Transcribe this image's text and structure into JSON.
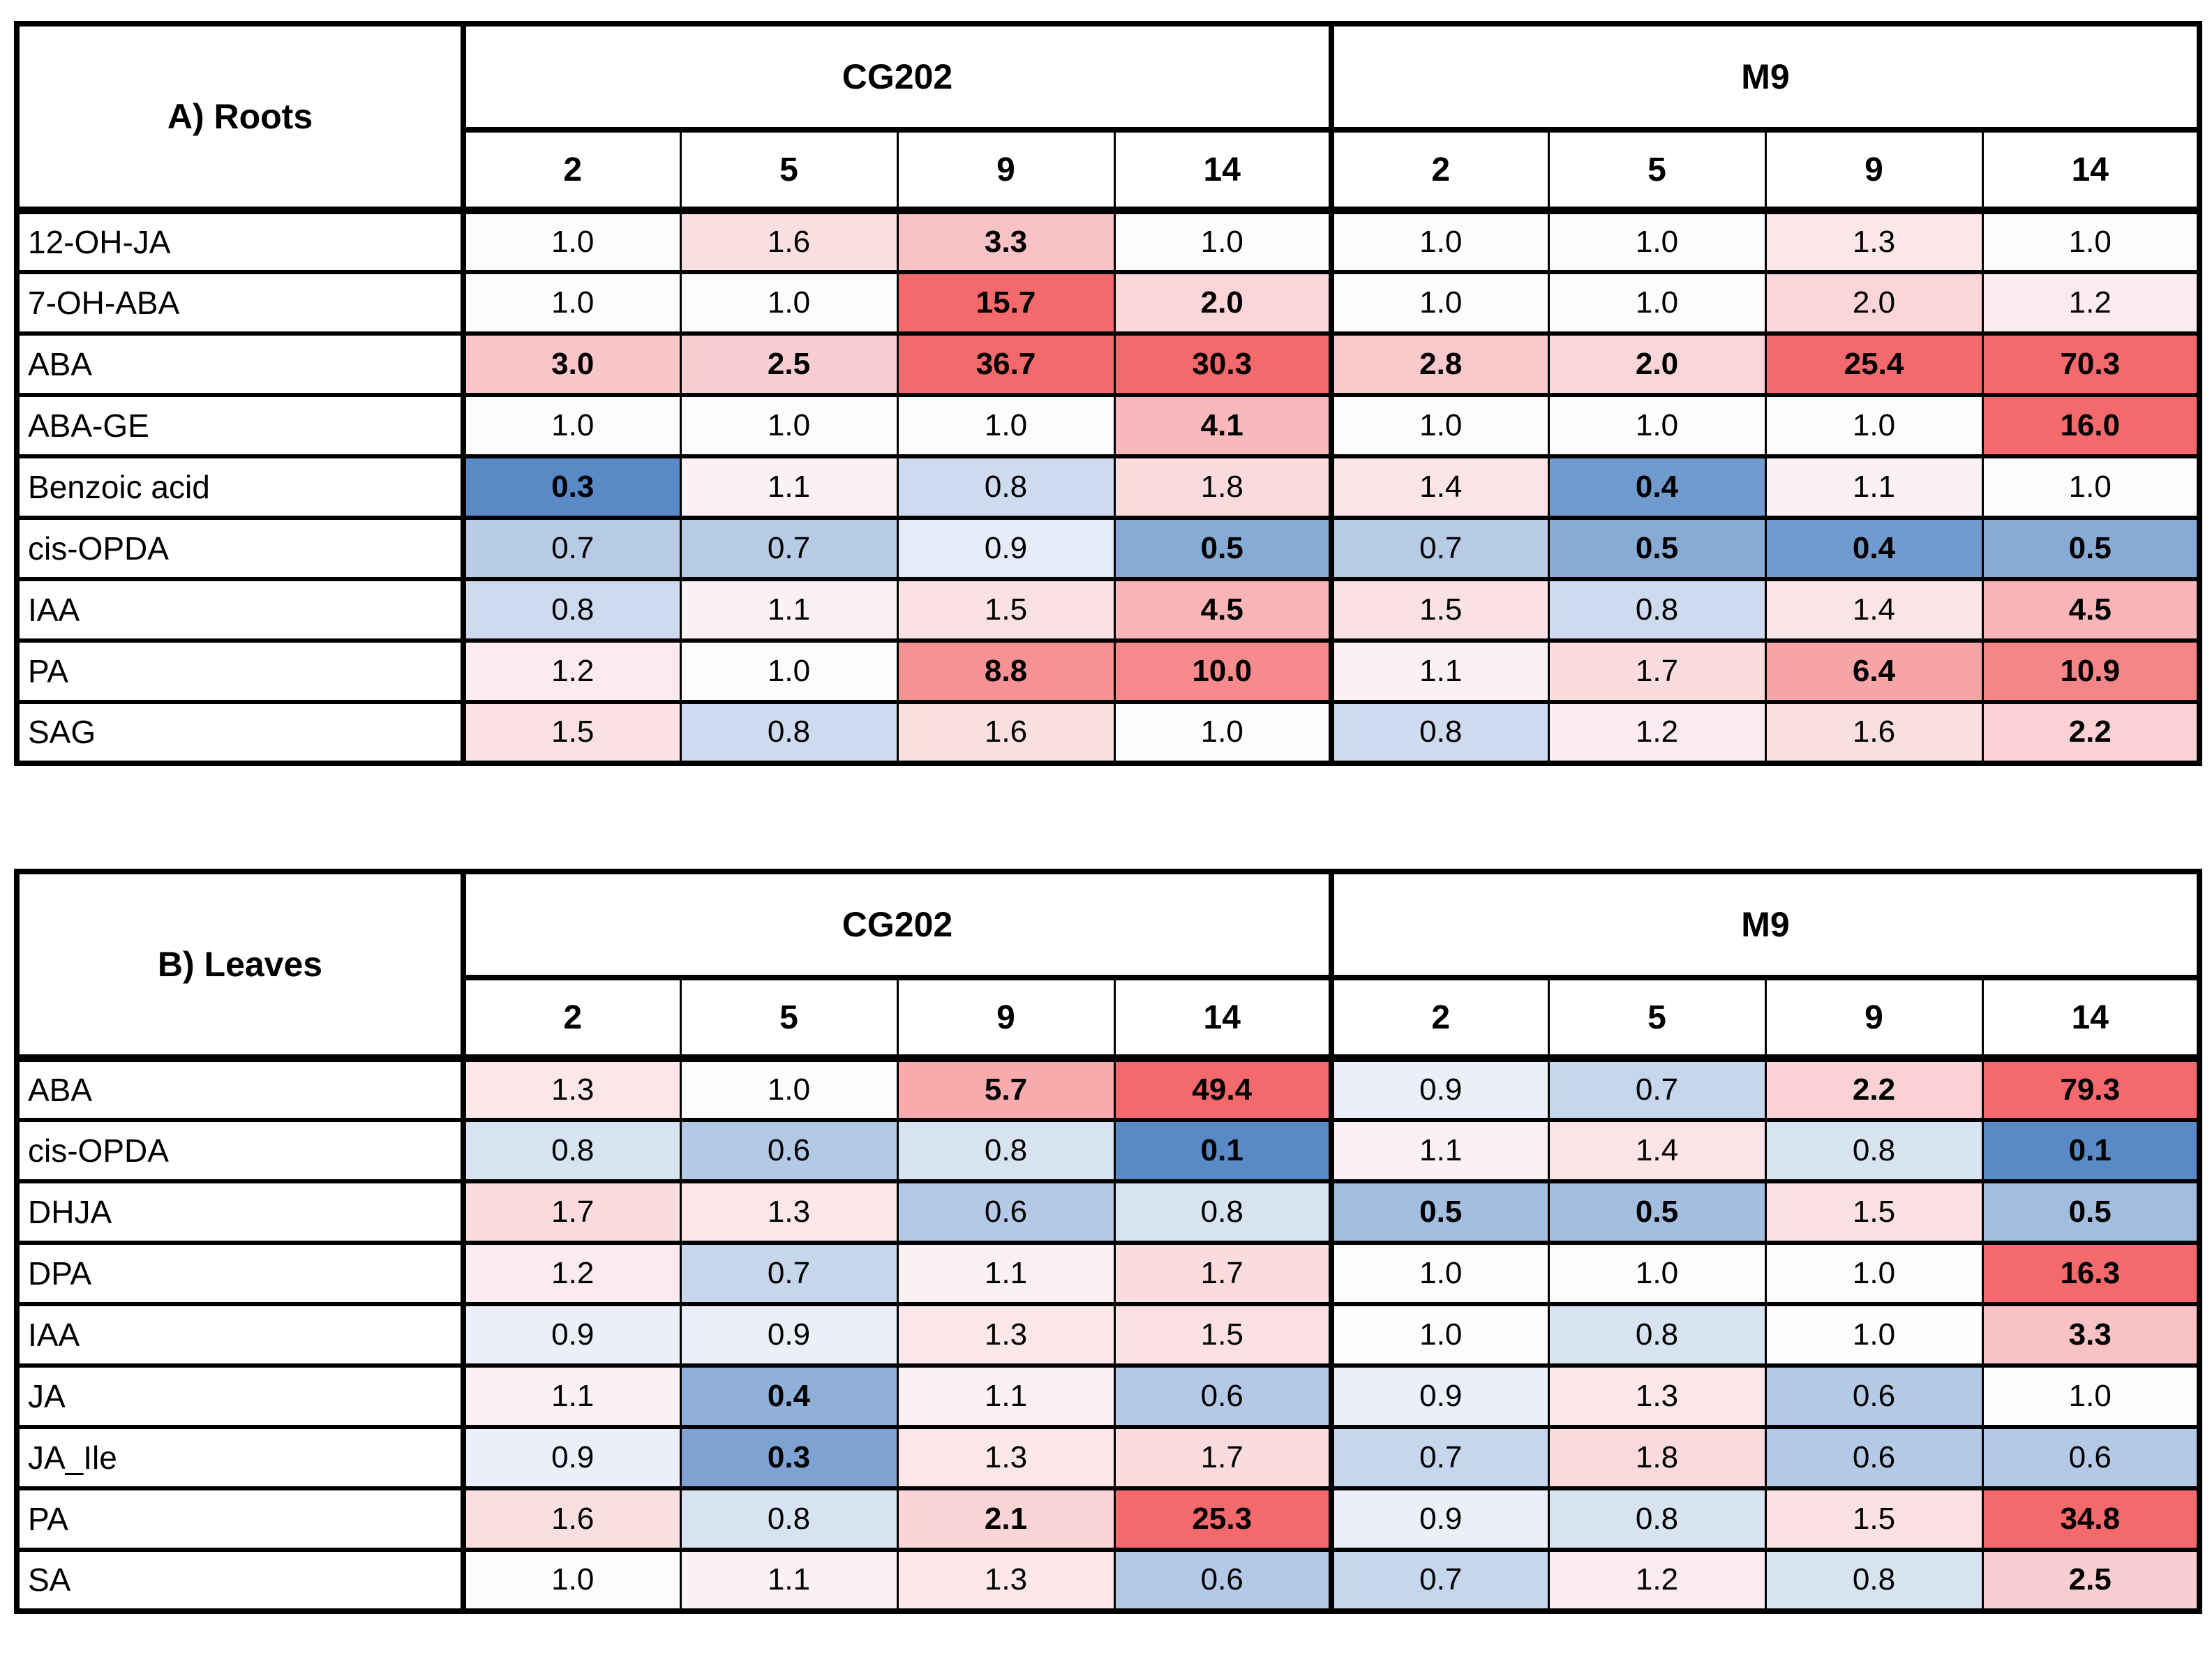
{
  "colors": {
    "low": "#5A8AC6",
    "mid": "#FCFCFF",
    "high": "#F4696B"
  },
  "tables": [
    {
      "title": "A) Roots",
      "groups": [
        "CG202",
        "M9"
      ],
      "timepoints": [
        "2",
        "5",
        "9",
        "14"
      ],
      "scale": {
        "blue_floor": 0.3,
        "red_cap": 16
      },
      "rows": [
        {
          "label": "12-OH-JA",
          "values": [
            1.0,
            1.6,
            3.3,
            1.0,
            1.0,
            1.0,
            1.3,
            1.0
          ],
          "bold": [
            0,
            0,
            1,
            0,
            0,
            0,
            0,
            0
          ]
        },
        {
          "label": "7-OH-ABA",
          "values": [
            1.0,
            1.0,
            15.7,
            2.0,
            1.0,
            1.0,
            2.0,
            1.2
          ],
          "bold": [
            0,
            0,
            1,
            1,
            0,
            0,
            0,
            0
          ]
        },
        {
          "label": "ABA",
          "values": [
            3.0,
            2.5,
            36.7,
            30.3,
            2.8,
            2.0,
            25.4,
            70.3
          ],
          "bold": [
            1,
            1,
            1,
            1,
            1,
            1,
            1,
            1
          ]
        },
        {
          "label": "ABA-GE",
          "values": [
            1.0,
            1.0,
            1.0,
            4.1,
            1.0,
            1.0,
            1.0,
            16.0
          ],
          "bold": [
            0,
            0,
            0,
            1,
            0,
            0,
            0,
            1
          ]
        },
        {
          "label": "Benzoic acid",
          "values": [
            0.3,
            1.1,
            0.8,
            1.8,
            1.4,
            0.4,
            1.1,
            1.0
          ],
          "bold": [
            1,
            0,
            0,
            0,
            0,
            1,
            0,
            0
          ]
        },
        {
          "label": "cis-OPDA",
          "values": [
            0.7,
            0.7,
            0.9,
            0.5,
            0.7,
            0.5,
            0.4,
            0.5
          ],
          "bold": [
            0,
            0,
            0,
            1,
            0,
            1,
            1,
            1
          ]
        },
        {
          "label": "IAA",
          "values": [
            0.8,
            1.1,
            1.5,
            4.5,
            1.5,
            0.8,
            1.4,
            4.5
          ],
          "bold": [
            0,
            0,
            0,
            1,
            0,
            0,
            0,
            1
          ]
        },
        {
          "label": "PA",
          "values": [
            1.2,
            1.0,
            8.8,
            10.0,
            1.1,
            1.7,
            6.4,
            10.9
          ],
          "bold": [
            0,
            0,
            1,
            1,
            0,
            0,
            1,
            1
          ]
        },
        {
          "label": "SAG",
          "values": [
            1.5,
            0.8,
            1.6,
            1.0,
            0.8,
            1.2,
            1.6,
            2.2
          ],
          "bold": [
            0,
            0,
            0,
            0,
            0,
            0,
            0,
            1
          ]
        }
      ]
    },
    {
      "title": "B) Leaves",
      "groups": [
        "CG202",
        "M9"
      ],
      "timepoints": [
        "2",
        "5",
        "9",
        "14"
      ],
      "scale": {
        "blue_floor": 0.1,
        "red_cap": 16
      },
      "rows": [
        {
          "label": "ABA",
          "values": [
            1.3,
            1.0,
            5.7,
            49.4,
            0.9,
            0.7,
            2.2,
            79.3
          ],
          "bold": [
            0,
            0,
            1,
            1,
            0,
            0,
            1,
            1
          ]
        },
        {
          "label": "cis-OPDA",
          "values": [
            0.8,
            0.6,
            0.8,
            0.1,
            1.1,
            1.4,
            0.8,
            0.1
          ],
          "bold": [
            0,
            0,
            0,
            1,
            0,
            0,
            0,
            1
          ]
        },
        {
          "label": "DHJA",
          "values": [
            1.7,
            1.3,
            0.6,
            0.8,
            0.5,
            0.5,
            1.5,
            0.5
          ],
          "bold": [
            0,
            0,
            0,
            0,
            1,
            1,
            0,
            1
          ]
        },
        {
          "label": "DPA",
          "values": [
            1.2,
            0.7,
            1.1,
            1.7,
            1.0,
            1.0,
            1.0,
            16.3
          ],
          "bold": [
            0,
            0,
            0,
            0,
            0,
            0,
            0,
            1
          ]
        },
        {
          "label": "IAA",
          "values": [
            0.9,
            0.9,
            1.3,
            1.5,
            1.0,
            0.8,
            1.0,
            3.3
          ],
          "bold": [
            0,
            0,
            0,
            0,
            0,
            0,
            0,
            1
          ]
        },
        {
          "label": "JA",
          "values": [
            1.1,
            0.4,
            1.1,
            0.6,
            0.9,
            1.3,
            0.6,
            1.0
          ],
          "bold": [
            0,
            1,
            0,
            0,
            0,
            0,
            0,
            0
          ]
        },
        {
          "label": "JA_Ile",
          "values": [
            0.9,
            0.3,
            1.3,
            1.7,
            0.7,
            1.8,
            0.6,
            0.6
          ],
          "bold": [
            0,
            1,
            0,
            0,
            0,
            0,
            0,
            0
          ]
        },
        {
          "label": "PA",
          "values": [
            1.6,
            0.8,
            2.1,
            25.3,
            0.9,
            0.8,
            1.5,
            34.8
          ],
          "bold": [
            0,
            0,
            1,
            1,
            0,
            0,
            0,
            1
          ]
        },
        {
          "label": "SA",
          "values": [
            1.0,
            1.1,
            1.3,
            0.6,
            0.7,
            1.2,
            0.8,
            2.5
          ],
          "bold": [
            0,
            0,
            0,
            0,
            0,
            0,
            0,
            1
          ]
        }
      ]
    }
  ],
  "chart_data": [
    {
      "type": "heatmap",
      "title": "A) Roots",
      "column_groups": [
        "CG202",
        "M9"
      ],
      "columns": [
        "CG202-2",
        "CG202-5",
        "CG202-9",
        "CG202-14",
        "M9-2",
        "M9-5",
        "M9-9",
        "M9-14"
      ],
      "rows": [
        "12-OH-JA",
        "7-OH-ABA",
        "ABA",
        "ABA-GE",
        "Benzoic acid",
        "cis-OPDA",
        "IAA",
        "PA",
        "SAG"
      ],
      "values": [
        [
          1.0,
          1.6,
          3.3,
          1.0,
          1.0,
          1.0,
          1.3,
          1.0
        ],
        [
          1.0,
          1.0,
          15.7,
          2.0,
          1.0,
          1.0,
          2.0,
          1.2
        ],
        [
          3.0,
          2.5,
          36.7,
          30.3,
          2.8,
          2.0,
          25.4,
          70.3
        ],
        [
          1.0,
          1.0,
          1.0,
          4.1,
          1.0,
          1.0,
          1.0,
          16.0
        ],
        [
          0.3,
          1.1,
          0.8,
          1.8,
          1.4,
          0.4,
          1.1,
          1.0
        ],
        [
          0.7,
          0.7,
          0.9,
          0.5,
          0.7,
          0.5,
          0.4,
          0.5
        ],
        [
          0.8,
          1.1,
          1.5,
          4.5,
          1.5,
          0.8,
          1.4,
          4.5
        ],
        [
          1.2,
          1.0,
          8.8,
          10.0,
          1.1,
          1.7,
          6.4,
          10.9
        ],
        [
          1.5,
          0.8,
          1.6,
          1.0,
          0.8,
          1.2,
          1.6,
          2.2
        ]
      ],
      "colormap": "blue (<1) to white (1.0) to red (>1), bold = emphasized values"
    },
    {
      "type": "heatmap",
      "title": "B) Leaves",
      "column_groups": [
        "CG202",
        "M9"
      ],
      "columns": [
        "CG202-2",
        "CG202-5",
        "CG202-9",
        "CG202-14",
        "M9-2",
        "M9-5",
        "M9-9",
        "M9-14"
      ],
      "rows": [
        "ABA",
        "cis-OPDA",
        "DHJA",
        "DPA",
        "IAA",
        "JA",
        "JA_Ile",
        "PA",
        "SA"
      ],
      "values": [
        [
          1.3,
          1.0,
          5.7,
          49.4,
          0.9,
          0.7,
          2.2,
          79.3
        ],
        [
          0.8,
          0.6,
          0.8,
          0.1,
          1.1,
          1.4,
          0.8,
          0.1
        ],
        [
          1.7,
          1.3,
          0.6,
          0.8,
          0.5,
          0.5,
          1.5,
          0.5
        ],
        [
          1.2,
          0.7,
          1.1,
          1.7,
          1.0,
          1.0,
          1.0,
          16.3
        ],
        [
          0.9,
          0.9,
          1.3,
          1.5,
          1.0,
          0.8,
          1.0,
          3.3
        ],
        [
          1.1,
          0.4,
          1.1,
          0.6,
          0.9,
          1.3,
          0.6,
          1.0
        ],
        [
          0.9,
          0.3,
          1.3,
          1.7,
          0.7,
          1.8,
          0.6,
          0.6
        ],
        [
          1.6,
          0.8,
          2.1,
          25.3,
          0.9,
          0.8,
          1.5,
          34.8
        ],
        [
          1.0,
          1.1,
          1.3,
          0.6,
          0.7,
          1.2,
          0.8,
          2.5
        ]
      ],
      "colormap": "blue (<1) to white (1.0) to red (>1), bold = emphasized values"
    }
  ]
}
